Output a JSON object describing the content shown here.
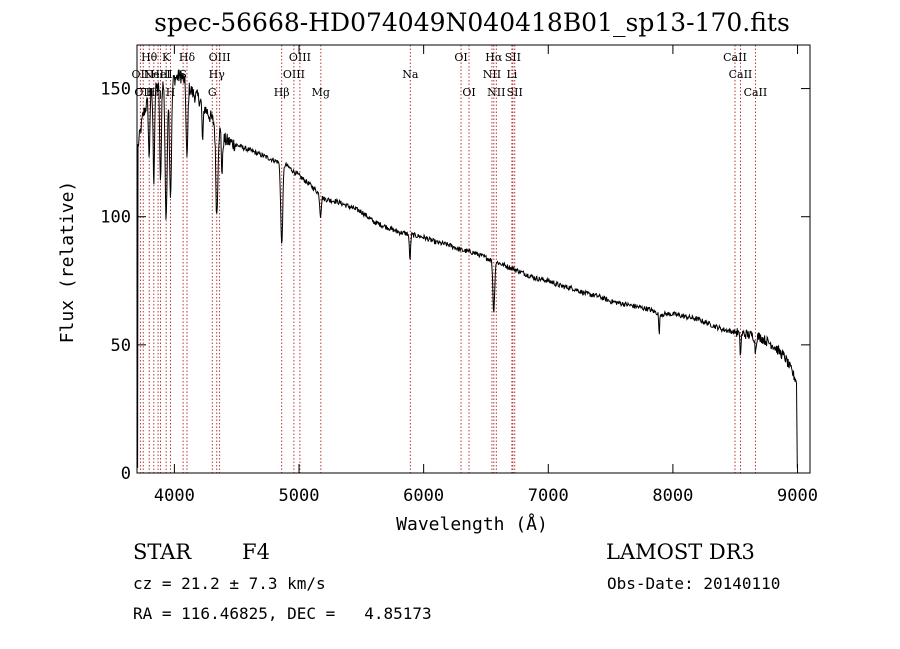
{
  "chart_data": {
    "type": "line",
    "title": "spec-56668-HD074049N040418B01_sp13-170.fits",
    "xlabel": "Wavelength (Å)",
    "ylabel": "Flux (relative)",
    "xlim": [
      3700,
      9100
    ],
    "ylim": [
      0,
      167
    ],
    "x_ticks": [
      4000,
      5000,
      6000,
      7000,
      8000,
      9000
    ],
    "y_ticks": [
      0,
      50,
      100,
      150
    ],
    "continuum_points": [
      [
        3700,
        125
      ],
      [
        3750,
        140
      ],
      [
        3800,
        147
      ],
      [
        3850,
        150
      ],
      [
        3900,
        152
      ],
      [
        3950,
        153
      ],
      [
        4000,
        154
      ],
      [
        4050,
        155
      ],
      [
        4100,
        152
      ],
      [
        4150,
        148
      ],
      [
        4200,
        146
      ],
      [
        4250,
        142
      ],
      [
        4300,
        138
      ],
      [
        4350,
        135
      ],
      [
        4400,
        130
      ],
      [
        4500,
        128
      ],
      [
        4600,
        126
      ],
      [
        4700,
        124
      ],
      [
        4800,
        122
      ],
      [
        4900,
        120
      ],
      [
        5000,
        116
      ],
      [
        5100,
        112
      ],
      [
        5200,
        107
      ],
      [
        5300,
        106
      ],
      [
        5400,
        104
      ],
      [
        5500,
        102
      ],
      [
        5600,
        98
      ],
      [
        5700,
        96
      ],
      [
        5800,
        94
      ],
      [
        5900,
        93
      ],
      [
        6000,
        92
      ],
      [
        6100,
        90
      ],
      [
        6200,
        89
      ],
      [
        6300,
        87
      ],
      [
        6400,
        86
      ],
      [
        6500,
        84
      ],
      [
        6600,
        82
      ],
      [
        6700,
        80
      ],
      [
        6800,
        78
      ],
      [
        6900,
        76
      ],
      [
        7000,
        75
      ],
      [
        7100,
        73
      ],
      [
        7200,
        72
      ],
      [
        7300,
        70
      ],
      [
        7400,
        69
      ],
      [
        7500,
        67
      ],
      [
        7600,
        66
      ],
      [
        7700,
        65
      ],
      [
        7800,
        64
      ],
      [
        7900,
        62
      ],
      [
        8000,
        62
      ],
      [
        8100,
        61
      ],
      [
        8200,
        60
      ],
      [
        8300,
        58
      ],
      [
        8400,
        56
      ],
      [
        8500,
        55
      ],
      [
        8600,
        54
      ],
      [
        8700,
        53
      ],
      [
        8800,
        50
      ],
      [
        8900,
        45
      ],
      [
        8950,
        40
      ],
      [
        8990,
        36
      ]
    ],
    "absorption_features": [
      {
        "wave": 3934,
        "depth": 55,
        "width": 8
      },
      {
        "wave": 3969,
        "depth": 45,
        "width": 8
      },
      {
        "wave": 3835,
        "depth": 35,
        "width": 6
      },
      {
        "wave": 3889,
        "depth": 40,
        "width": 6
      },
      {
        "wave": 3797,
        "depth": 25,
        "width": 5
      },
      {
        "wave": 4101,
        "depth": 30,
        "width": 7
      },
      {
        "wave": 4227,
        "depth": 15,
        "width": 5
      },
      {
        "wave": 4340,
        "depth": 35,
        "width": 8
      },
      {
        "wave": 4383,
        "depth": 15,
        "width": 5
      },
      {
        "wave": 4861,
        "depth": 32,
        "width": 8
      },
      {
        "wave": 5172,
        "depth": 8,
        "width": 6
      },
      {
        "wave": 5890,
        "depth": 10,
        "width": 5
      },
      {
        "wave": 6563,
        "depth": 20,
        "width": 7
      },
      {
        "wave": 7890,
        "depth": 8,
        "width": 4
      },
      {
        "wave": 8542,
        "depth": 8,
        "width": 5
      },
      {
        "wave": 8662,
        "depth": 6,
        "width": 5
      }
    ],
    "edge_points": [
      {
        "wave": 3705,
        "flux": 2
      },
      {
        "wave": 8998,
        "flux": 2
      }
    ],
    "reference_lines": [
      {
        "wave": 3727,
        "label": "OII",
        "row": 1
      },
      {
        "wave": 3750,
        "label": "OII",
        "row": 2
      },
      {
        "wave": 3798,
        "label": "Hθ",
        "row": 0
      },
      {
        "wave": 3835,
        "label": "Hη",
        "row": 2
      },
      {
        "wave": 3869,
        "label": "NeIII",
        "row": 1
      },
      {
        "wave": 3889,
        "label": "HeI",
        "row": 1
      },
      {
        "wave": 3934,
        "label": "K",
        "row": 0
      },
      {
        "wave": 3969,
        "label": "H",
        "row": 2
      },
      {
        "wave": 4101,
        "label": "Hδ",
        "row": 0
      },
      {
        "wave": 4070,
        "label": "S",
        "row": 1
      },
      {
        "wave": 4304,
        "label": "G",
        "row": 2
      },
      {
        "wave": 4340,
        "label": "Hγ",
        "row": 1
      },
      {
        "wave": 4363,
        "label": "OIII",
        "row": 0
      },
      {
        "wave": 4861,
        "label": "Hβ",
        "row": 2
      },
      {
        "wave": 4959,
        "label": "OIII",
        "row": 1
      },
      {
        "wave": 5007,
        "label": "OIII",
        "row": 0
      },
      {
        "wave": 5175,
        "label": "Mg",
        "row": 2
      },
      {
        "wave": 5893,
        "label": "Na",
        "row": 1
      },
      {
        "wave": 6300,
        "label": "OI",
        "row": 0
      },
      {
        "wave": 6364,
        "label": "OI",
        "row": 2
      },
      {
        "wave": 6548,
        "label": "NII",
        "row": 1
      },
      {
        "wave": 6563,
        "label": "Hα",
        "row": 0
      },
      {
        "wave": 6583,
        "label": "NII",
        "row": 2
      },
      {
        "wave": 6708,
        "label": "Li",
        "row": 1
      },
      {
        "wave": 6716,
        "label": "SII",
        "row": 0
      },
      {
        "wave": 6731,
        "label": "SII",
        "row": 2
      },
      {
        "wave": 8498,
        "label": "CaII",
        "row": 0
      },
      {
        "wave": 8542,
        "label": "CaII",
        "row": 1
      },
      {
        "wave": 8662,
        "label": "CaII",
        "row": 2
      }
    ]
  },
  "info": {
    "class": "STAR",
    "subclass": "F4",
    "survey": "LAMOST DR3",
    "cz": "cz = 21.2 ± 7.3 km/s",
    "obs_date": "Obs-Date: 20140110",
    "coords": "RA = 116.46825, DEC =   4.85173"
  }
}
